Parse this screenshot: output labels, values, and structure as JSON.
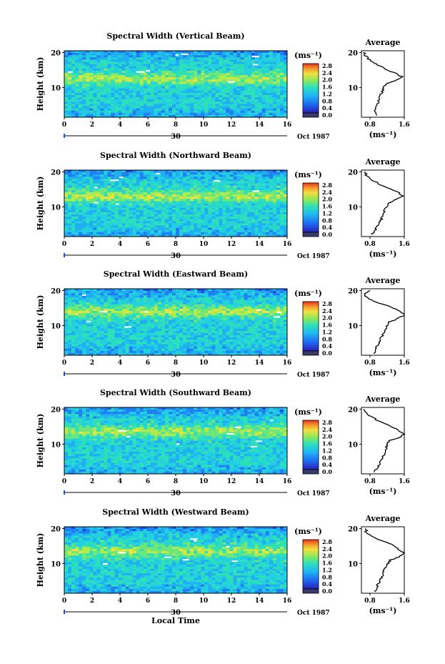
{
  "chart_data": [
    {
      "type": "heatmap",
      "title": "Spectral Width (Vertical Beam)",
      "ylabel": "Height (km)",
      "yticks": [
        "10",
        "20"
      ],
      "xticks": [
        "0",
        "2",
        "4",
        "6",
        "8",
        "10",
        "12",
        "14",
        "16"
      ],
      "xlim": [
        0,
        16
      ],
      "ylim": [
        1.5,
        20.5
      ],
      "day_label": "30",
      "month_label": "Oct 1987",
      "colorbar": {
        "unit": "(ms⁻¹)",
        "ticks": [
          "0.0",
          "0.4",
          "0.8",
          "1.2",
          "1.6",
          "2.0",
          "2.4",
          "2.8"
        ]
      },
      "profile": {
        "title": "Average",
        "xlabel": "(ms⁻¹)",
        "xticks": [
          "0.8",
          "1.6"
        ],
        "xlim": [
          0.6,
          1.6
        ],
        "height": [
          2,
          4,
          6,
          8,
          10,
          11,
          12,
          13,
          14,
          15,
          16,
          17,
          18,
          19,
          20
        ],
        "value": [
          0.95,
          0.92,
          1.0,
          1.05,
          1.12,
          1.15,
          1.42,
          1.55,
          1.4,
          1.22,
          1.05,
          0.9,
          0.78,
          0.7,
          0.66
        ]
      },
      "band_peak_km": 12.5
    },
    {
      "type": "heatmap",
      "title": "Spectral Width (Northward Beam)",
      "ylabel": "Height (km)",
      "yticks": [
        "10",
        "20"
      ],
      "xticks": [
        "0",
        "2",
        "4",
        "6",
        "8",
        "10",
        "12",
        "14",
        "16"
      ],
      "xlim": [
        0,
        16
      ],
      "ylim": [
        1.5,
        20.5
      ],
      "day_label": "30",
      "month_label": "Oct 1987",
      "colorbar": {
        "unit": "(ms⁻¹)",
        "ticks": [
          "0.0",
          "0.4",
          "0.8",
          "1.2",
          "1.6",
          "2.0",
          "2.4",
          "2.8"
        ]
      },
      "profile": {
        "title": "Average",
        "xlabel": "(ms⁻¹)",
        "xticks": [
          "0.8",
          "1.6"
        ],
        "xlim": [
          0.6,
          1.6
        ],
        "height": [
          2,
          4,
          6,
          8,
          10,
          11,
          12,
          13,
          14,
          15,
          16,
          17,
          18,
          19,
          20
        ],
        "value": [
          0.85,
          0.95,
          1.05,
          1.1,
          1.18,
          1.22,
          1.4,
          1.58,
          1.48,
          1.32,
          1.1,
          0.95,
          0.82,
          0.72,
          0.68
        ]
      },
      "band_peak_km": 13
    },
    {
      "type": "heatmap",
      "title": "Spectral Width (Eastward Beam)",
      "ylabel": "Height (km)",
      "yticks": [
        "10",
        "20"
      ],
      "xticks": [
        "0",
        "2",
        "4",
        "6",
        "8",
        "10",
        "12",
        "14",
        "16"
      ],
      "xlim": [
        0,
        16
      ],
      "ylim": [
        1.5,
        20.5
      ],
      "day_label": "30",
      "month_label": "Oct 1987",
      "colorbar": {
        "unit": "(ms⁻¹)",
        "ticks": [
          "0.0",
          "0.4",
          "0.8",
          "1.2",
          "1.6",
          "2.0",
          "2.4",
          "2.8"
        ]
      },
      "profile": {
        "title": "Average",
        "xlabel": "(ms⁻¹)",
        "xticks": [
          "0.8",
          "1.6"
        ],
        "xlim": [
          0.6,
          1.6
        ],
        "height": [
          2,
          4,
          6,
          8,
          10,
          11,
          12,
          13,
          14,
          15,
          16,
          17,
          18,
          19,
          20
        ],
        "value": [
          0.9,
          0.95,
          1.05,
          1.12,
          1.2,
          1.25,
          1.45,
          1.6,
          1.5,
          1.35,
          1.12,
          0.85,
          0.75,
          0.65,
          0.8
        ]
      },
      "band_peak_km": 14
    },
    {
      "type": "heatmap",
      "title": "Spectral Width (Southward Beam)",
      "ylabel": "Height (km)",
      "yticks": [
        "10",
        "20"
      ],
      "xticks": [
        "0",
        "2",
        "4",
        "6",
        "8",
        "10",
        "12",
        "14",
        "16"
      ],
      "xlim": [
        0,
        16
      ],
      "ylim": [
        1.5,
        20.5
      ],
      "day_label": "30",
      "month_label": "Oct 1987",
      "colorbar": {
        "unit": "(ms⁻¹)",
        "ticks": [
          "0.0",
          "0.4",
          "0.8",
          "1.2",
          "1.6",
          "2.0",
          "2.4",
          "2.8"
        ]
      },
      "profile": {
        "title": "Average",
        "xlabel": "(ms⁻¹)",
        "xticks": [
          "0.8",
          "1.6"
        ],
        "xlim": [
          0.6,
          1.6
        ],
        "height": [
          2,
          4,
          6,
          8,
          10,
          11,
          12,
          13,
          14,
          15,
          16,
          17,
          18,
          19,
          20
        ],
        "value": [
          0.9,
          1.0,
          1.1,
          1.15,
          1.2,
          1.25,
          1.5,
          1.6,
          1.45,
          1.3,
          1.15,
          0.95,
          0.8,
          0.7,
          0.66
        ]
      },
      "band_peak_km": 13.5
    },
    {
      "type": "heatmap",
      "title": "Spectral Width (Westward Beam)",
      "ylabel": "Height (km)",
      "yticks": [
        "10",
        "20"
      ],
      "xticks": [
        "0",
        "2",
        "4",
        "6",
        "8",
        "10",
        "12",
        "14",
        "16"
      ],
      "xlim": [
        0,
        16
      ],
      "ylim": [
        1.5,
        20.5
      ],
      "day_label": "30",
      "month_label": "Oct 1987",
      "xlabel": "Local Time",
      "colorbar": {
        "unit": "(ms⁻¹)",
        "ticks": [
          "0.0",
          "0.4",
          "0.8",
          "1.2",
          "1.6",
          "2.0",
          "2.4",
          "2.8"
        ]
      },
      "profile": {
        "title": "Average",
        "xlabel": "(ms⁻¹)",
        "xticks": [
          "0.8",
          "1.6"
        ],
        "xlim": [
          0.6,
          1.6
        ],
        "height": [
          2,
          4,
          6,
          8,
          10,
          11,
          12,
          13,
          14,
          15,
          16,
          17,
          18,
          19,
          20
        ],
        "value": [
          0.92,
          0.98,
          1.08,
          1.12,
          1.22,
          1.28,
          1.5,
          1.6,
          1.45,
          1.38,
          1.2,
          0.95,
          0.8,
          0.7,
          0.72
        ]
      },
      "band_peak_km": 13.5
    }
  ],
  "colorbar_colors": [
    "#3b3b6b",
    "#2a1fb8",
    "#1e6cf0",
    "#1fb8f2",
    "#2ee0b8",
    "#8ee85a",
    "#f0e040",
    "#f29a2e",
    "#e8301e"
  ]
}
